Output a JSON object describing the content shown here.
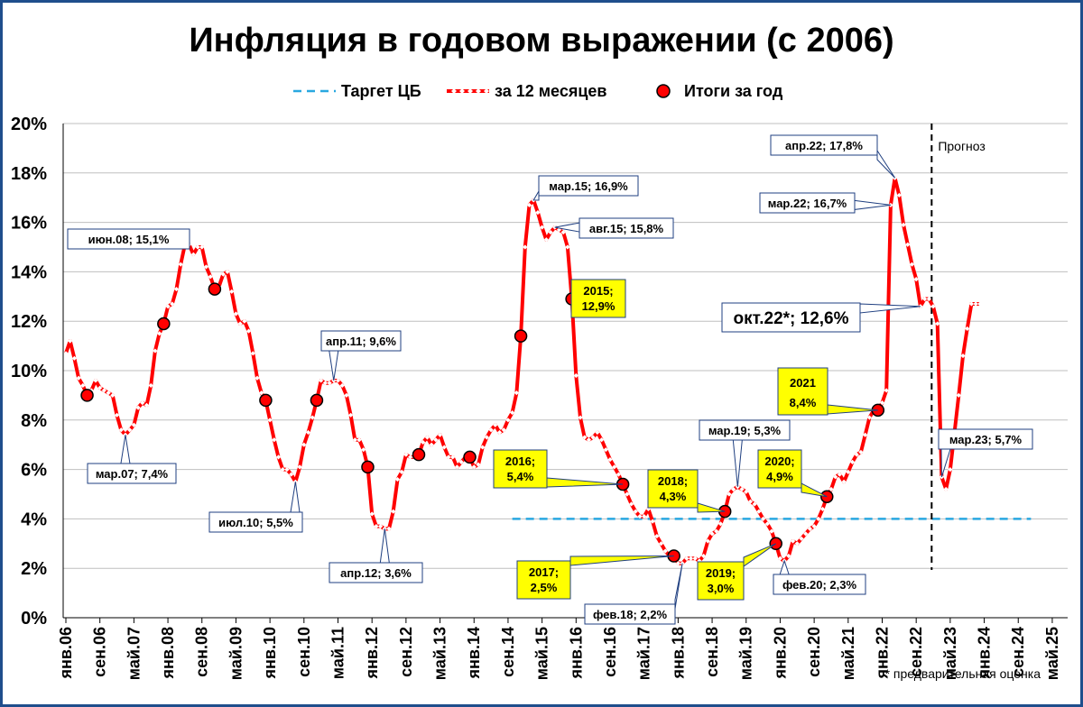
{
  "chart_data": {
    "type": "line",
    "title": "Инфляция в годовом выражении (с 2006)",
    "ylim": [
      0,
      20
    ],
    "yticks": [
      "0%",
      "2%",
      "4%",
      "6%",
      "8%",
      "10%",
      "12%",
      "14%",
      "16%",
      "18%",
      "20%"
    ],
    "x_tick_labels": [
      "янв.06",
      "сен.06",
      "май.07",
      "янв.08",
      "сен.08",
      "май.09",
      "янв.10",
      "сен.10",
      "май.11",
      "янв.12",
      "сен.12",
      "май.13",
      "янв.14",
      "сен.14",
      "май.15",
      "янв.16",
      "сен.16",
      "май.17",
      "янв.18",
      "сен.18",
      "май.19",
      "янв.20",
      "сен.20",
      "май.21",
      "янв.22",
      "сен.22",
      "май.23",
      "янв.24",
      "сен.24",
      "май.25"
    ],
    "legend": {
      "target": "Таргет ЦБ",
      "monthly": "за 12 месяцев",
      "annual": "Итоги за год"
    },
    "colors": {
      "series": "#ff0000",
      "target": "#29a8e0",
      "callout_yellow": "#ffff00",
      "callout_border": "#1f3f80",
      "frame": "#1f4e8c"
    },
    "series": [
      {
        "name": "за 12 месяцев",
        "x": [
          "2006-01",
          "2006-02",
          "2006-03",
          "2006-04",
          "2006-05",
          "2006-06",
          "2006-07",
          "2006-08",
          "2006-09",
          "2006-10",
          "2006-11",
          "2006-12",
          "2007-01",
          "2007-02",
          "2007-03",
          "2007-04",
          "2007-05",
          "2007-06",
          "2007-07",
          "2007-08",
          "2007-09",
          "2007-10",
          "2007-11",
          "2007-12",
          "2008-01",
          "2008-02",
          "2008-03",
          "2008-04",
          "2008-05",
          "2008-06",
          "2008-07",
          "2008-08",
          "2008-09",
          "2008-10",
          "2008-11",
          "2008-12",
          "2009-01",
          "2009-02",
          "2009-03",
          "2009-04",
          "2009-05",
          "2009-06",
          "2009-07",
          "2009-08",
          "2009-09",
          "2009-10",
          "2009-11",
          "2009-12",
          "2010-01",
          "2010-02",
          "2010-03",
          "2010-04",
          "2010-05",
          "2010-06",
          "2010-07",
          "2010-08",
          "2010-09",
          "2010-10",
          "2010-11",
          "2010-12",
          "2011-01",
          "2011-02",
          "2011-03",
          "2011-04",
          "2011-05",
          "2011-06",
          "2011-07",
          "2011-08",
          "2011-09",
          "2011-10",
          "2011-11",
          "2011-12",
          "2012-01",
          "2012-02",
          "2012-03",
          "2012-04",
          "2012-05",
          "2012-06",
          "2012-07",
          "2012-08",
          "2012-09",
          "2012-10",
          "2012-11",
          "2012-12",
          "2013-01",
          "2013-02",
          "2013-03",
          "2013-04",
          "2013-05",
          "2013-06",
          "2013-07",
          "2013-08",
          "2013-09",
          "2013-10",
          "2013-11",
          "2013-12",
          "2014-01",
          "2014-02",
          "2014-03",
          "2014-04",
          "2014-05",
          "2014-06",
          "2014-07",
          "2014-08",
          "2014-09",
          "2014-10",
          "2014-11",
          "2014-12",
          "2015-01",
          "2015-02",
          "2015-03",
          "2015-04",
          "2015-05",
          "2015-06",
          "2015-07",
          "2015-08",
          "2015-09",
          "2015-10",
          "2015-11",
          "2015-12",
          "2016-01",
          "2016-02",
          "2016-03",
          "2016-04",
          "2016-05",
          "2016-06",
          "2016-07",
          "2016-08",
          "2016-09",
          "2016-10",
          "2016-11",
          "2016-12",
          "2017-01",
          "2017-02",
          "2017-03",
          "2017-04",
          "2017-05",
          "2017-06",
          "2017-07",
          "2017-08",
          "2017-09",
          "2017-10",
          "2017-11",
          "2017-12",
          "2018-01",
          "2018-02",
          "2018-03",
          "2018-04",
          "2018-05",
          "2018-06",
          "2018-07",
          "2018-08",
          "2018-09",
          "2018-10",
          "2018-11",
          "2018-12",
          "2019-01",
          "2019-02",
          "2019-03",
          "2019-04",
          "2019-05",
          "2019-06",
          "2019-07",
          "2019-08",
          "2019-09",
          "2019-10",
          "2019-11",
          "2019-12",
          "2020-01",
          "2020-02",
          "2020-03",
          "2020-04",
          "2020-05",
          "2020-06",
          "2020-07",
          "2020-08",
          "2020-09",
          "2020-10",
          "2020-11",
          "2020-12",
          "2021-01",
          "2021-02",
          "2021-03",
          "2021-04",
          "2021-05",
          "2021-06",
          "2021-07",
          "2021-08",
          "2021-09",
          "2021-10",
          "2021-11",
          "2021-12",
          "2022-01",
          "2022-02",
          "2022-03",
          "2022-04",
          "2022-05",
          "2022-06",
          "2022-07",
          "2022-08",
          "2022-09",
          "2022-10",
          "2022-11",
          "2022-12",
          "2023-01",
          "2023-02",
          "2023-03",
          "2023-04",
          "2023-05",
          "2023-06",
          "2023-07",
          "2023-08",
          "2023-09",
          "2023-10",
          "2023-11",
          "2023-12"
        ],
        "values": [
          10.7,
          11.2,
          10.5,
          9.7,
          9.4,
          9.0,
          9.2,
          9.6,
          9.3,
          9.2,
          9.1,
          9.0,
          8.2,
          7.6,
          7.4,
          7.6,
          7.8,
          8.5,
          8.7,
          8.6,
          9.4,
          10.8,
          11.5,
          11.9,
          12.6,
          12.7,
          13.3,
          14.3,
          15.1,
          15.1,
          14.7,
          15.0,
          15.0,
          14.2,
          13.8,
          13.3,
          13.4,
          13.9,
          14.0,
          13.2,
          12.3,
          11.9,
          12.0,
          11.6,
          10.7,
          9.7,
          9.1,
          8.8,
          8.0,
          7.2,
          6.5,
          6.0,
          6.0,
          5.8,
          5.5,
          6.1,
          7.0,
          7.5,
          8.1,
          8.8,
          9.6,
          9.5,
          9.5,
          9.6,
          9.6,
          9.4,
          9.0,
          8.2,
          7.2,
          7.2,
          6.8,
          6.1,
          4.2,
          3.7,
          3.7,
          3.6,
          3.6,
          4.3,
          5.6,
          5.9,
          6.6,
          6.5,
          6.5,
          6.6,
          7.1,
          7.3,
          7.0,
          7.2,
          7.4,
          6.9,
          6.5,
          6.5,
          6.1,
          6.3,
          6.5,
          6.5,
          6.1,
          6.2,
          6.9,
          7.3,
          7.6,
          7.8,
          7.5,
          7.6,
          8.0,
          8.3,
          9.1,
          11.4,
          15.0,
          16.7,
          16.9,
          16.4,
          15.8,
          15.3,
          15.6,
          15.8,
          15.7,
          15.6,
          15.0,
          12.9,
          9.8,
          8.1,
          7.3,
          7.2,
          7.3,
          7.5,
          7.2,
          6.8,
          6.4,
          6.1,
          5.8,
          5.4,
          5.0,
          4.6,
          4.3,
          4.1,
          4.1,
          4.4,
          3.9,
          3.3,
          3.0,
          2.7,
          2.5,
          2.5,
          2.2,
          2.2,
          2.4,
          2.4,
          2.4,
          2.3,
          2.5,
          3.1,
          3.4,
          3.5,
          3.8,
          4.3,
          5.0,
          5.2,
          5.3,
          5.2,
          5.1,
          4.7,
          4.6,
          4.3,
          4.0,
          3.8,
          3.5,
          3.0,
          2.4,
          2.3,
          2.5,
          3.1,
          3.0,
          3.2,
          3.4,
          3.6,
          3.7,
          4.0,
          4.4,
          4.9,
          5.2,
          5.7,
          5.8,
          5.5,
          5.9,
          6.3,
          6.6,
          6.7,
          7.4,
          8.1,
          8.4,
          8.4,
          8.7,
          9.2,
          16.7,
          17.8,
          17.1,
          15.9,
          15.1,
          14.3,
          13.7,
          12.6,
          12.9,
          12.9,
          12.6,
          11.9,
          5.7,
          5.2,
          6.0,
          7.5,
          9.0,
          10.6,
          11.7,
          12.7,
          12.7,
          12.7
        ]
      }
    ],
    "annual_points": {
      "name": "Итоги за год",
      "x": [
        "2006-06",
        "2007-12",
        "2008-12",
        "2009-12",
        "2010-12",
        "2011-12",
        "2012-12",
        "2013-12",
        "2014-12",
        "2015-12",
        "2016-12",
        "2017-12",
        "2018-12",
        "2019-12",
        "2020-12",
        "2021-12"
      ],
      "values": [
        9.0,
        11.9,
        13.3,
        8.8,
        8.8,
        6.1,
        6.6,
        6.5,
        11.4,
        12.9,
        5.4,
        2.5,
        4.3,
        3.0,
        4.9,
        8.4
      ]
    },
    "target": {
      "value": 4,
      "x_start": "2014-10",
      "x_end": "2024-12"
    },
    "forecast_line": {
      "x": "2022-12",
      "label": "Прогноз"
    },
    "callouts": [
      {
        "text": "мар.07; 7,4%",
        "x": "2007-03",
        "y": 7.4,
        "style": "white"
      },
      {
        "text": "июн.08; 15,1%",
        "x": "2008-06",
        "y": 15.1,
        "style": "white"
      },
      {
        "text": "июл.10; 5,5%",
        "x": "2010-07",
        "y": 5.5,
        "style": "white"
      },
      {
        "text": "апр.11; 9,6%",
        "x": "2011-04",
        "y": 9.6,
        "style": "white"
      },
      {
        "text": "апр.12; 3,6%",
        "x": "2012-04",
        "y": 3.6,
        "style": "white"
      },
      {
        "text": "мар.15; 16,9%",
        "x": "2015-03",
        "y": 16.9,
        "style": "white"
      },
      {
        "text": "авг.15; 15,8%",
        "x": "2015-08",
        "y": 15.8,
        "style": "white"
      },
      {
        "text": "фев.18; 2,2%",
        "x": "2018-02",
        "y": 2.2,
        "style": "white"
      },
      {
        "text": "мар.19; 5,3%",
        "x": "2019-03",
        "y": 5.3,
        "style": "white"
      },
      {
        "text": "фев.20; 2,3%",
        "x": "2020-02",
        "y": 2.3,
        "style": "white"
      },
      {
        "text": "мар.22; 16,7%",
        "x": "2022-03",
        "y": 16.7,
        "style": "white"
      },
      {
        "text": "апр.22; 17,8%",
        "x": "2022-04",
        "y": 17.8,
        "style": "white"
      },
      {
        "text": "мар.23; 5,7%",
        "x": "2023-03",
        "y": 5.7,
        "style": "white"
      },
      {
        "text": "окт.22*; 12,6%",
        "x": "2022-10",
        "y": 12.6,
        "style": "big"
      },
      {
        "lines": [
          "2015;",
          "12,9%"
        ],
        "x": "2015-12",
        "y": 12.9,
        "style": "yellow"
      },
      {
        "lines": [
          "2016;",
          "5,4%"
        ],
        "x": "2016-12",
        "y": 5.4,
        "style": "yellow"
      },
      {
        "lines": [
          "2017;",
          "2,5%"
        ],
        "x": "2017-12",
        "y": 2.5,
        "style": "yellow"
      },
      {
        "lines": [
          "2018;",
          "4,3%"
        ],
        "x": "2018-12",
        "y": 4.3,
        "style": "yellow"
      },
      {
        "lines": [
          "2019;",
          "3,0%"
        ],
        "x": "2019-12",
        "y": 3.0,
        "style": "yellow"
      },
      {
        "lines": [
          "2020;",
          "4,9%"
        ],
        "x": "2020-12",
        "y": 4.9,
        "style": "yellow"
      },
      {
        "lines": [
          "2021",
          "8,4%"
        ],
        "x": "2021-12",
        "y": 8.4,
        "style": "yellow-big"
      }
    ],
    "footnote": "* предварительная оценка"
  }
}
